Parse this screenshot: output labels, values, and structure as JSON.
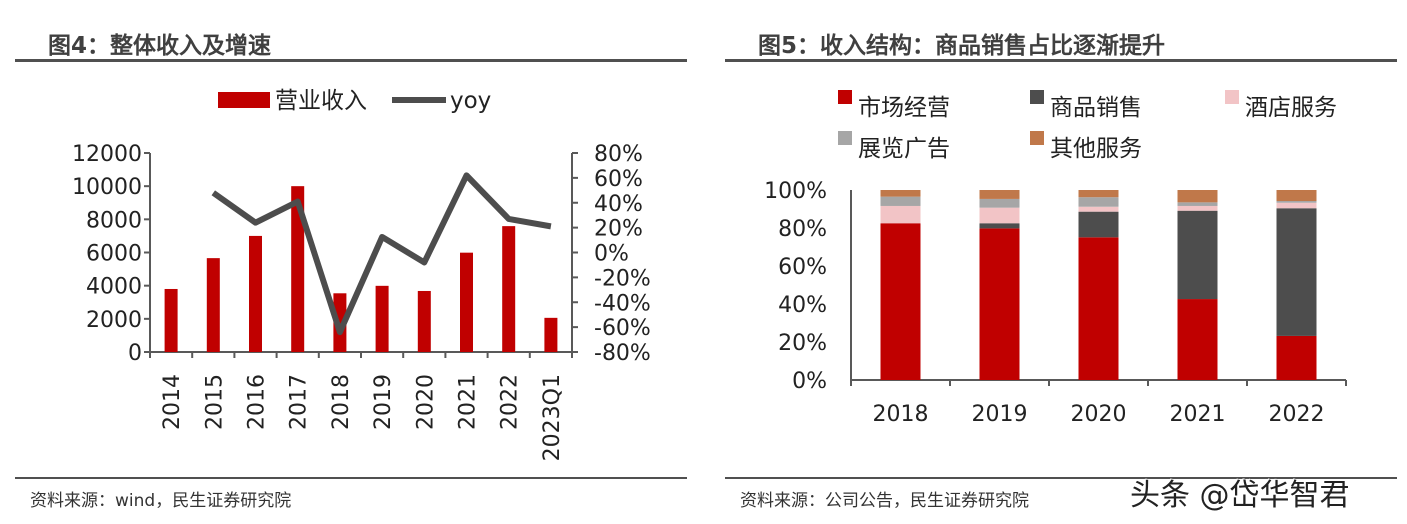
{
  "left": {
    "title": "图4：整体收入及增速",
    "source": "资料来源：wind，民生证券研究院"
  },
  "right": {
    "title": "图5：收入结构：商品销售占比逐渐提升",
    "source": "资料来源：公司公告，民生证券研究院"
  },
  "watermark": "头条 @岱华智君",
  "chart_data": [
    {
      "type": "bar+line",
      "categories": [
        "2014",
        "2015",
        "2016",
        "2017",
        "2018",
        "2019",
        "2020",
        "2021",
        "2022",
        "2023Q1"
      ],
      "series": [
        {
          "name": "营业收入",
          "type": "bar",
          "axis": "left",
          "color": "#C00000",
          "values": [
            3800,
            5660,
            7000,
            10000,
            3540,
            3990,
            3680,
            5990,
            7590,
            2060
          ]
        },
        {
          "name": "yoy",
          "type": "line",
          "axis": "right",
          "color": "#4D4D4D",
          "values": [
            null,
            48,
            24,
            41,
            -64,
            12.5,
            -8,
            62,
            27,
            21
          ]
        }
      ],
      "ylim": [
        0,
        12000
      ],
      "yticks": [
        "0",
        "2000",
        "4000",
        "6000",
        "8000",
        "10000",
        "12000"
      ],
      "y2lim": [
        -80,
        80
      ],
      "y2ticks": [
        "-80%",
        "-60%",
        "-40%",
        "-20%",
        "0%",
        "20%",
        "40%",
        "60%",
        "80%"
      ],
      "legend_position": "top",
      "grid": false
    },
    {
      "type": "stacked-bar",
      "categories": [
        "2018",
        "2019",
        "2020",
        "2021",
        "2022"
      ],
      "series": [
        {
          "name": "市场经营",
          "color": "#C00000",
          "values": [
            82.5,
            79.8,
            75.1,
            42.6,
            23.2
          ]
        },
        {
          "name": "商品销售",
          "color": "#4D4D4D",
          "values": [
            0,
            2.7,
            13.5,
            46.5,
            67.2
          ]
        },
        {
          "name": "酒店服务",
          "color": "#F2C4C6",
          "values": [
            9.1,
            8.2,
            2.6,
            2.5,
            2.9
          ]
        },
        {
          "name": "展览广告",
          "color": "#A6A6A6",
          "values": [
            4.9,
            4.6,
            5.0,
            1.9,
            0.9
          ]
        },
        {
          "name": "其他服务",
          "color": "#C0784A",
          "values": [
            3.5,
            4.7,
            3.8,
            6.5,
            5.8
          ]
        }
      ],
      "ylim": [
        0,
        100
      ],
      "yticks": [
        "0%",
        "20%",
        "40%",
        "60%",
        "80%",
        "100%"
      ],
      "legend_position": "top",
      "grid": false
    }
  ]
}
